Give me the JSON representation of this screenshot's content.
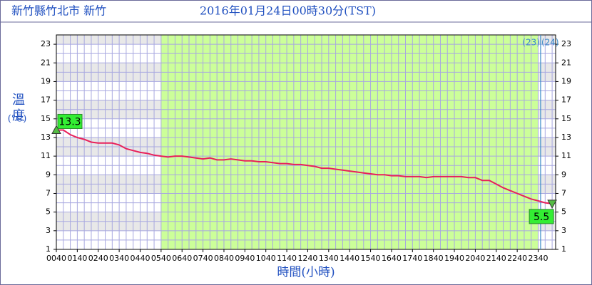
{
  "chart_data": {
    "type": "line",
    "station": "新竹縣竹北市 新竹",
    "title": "2016年01月24日00時30分(TST)",
    "ylabel": "溫度",
    "yunit": "(°C)",
    "xlabel": "時間(小時)",
    "x": [
      40,
      60,
      80,
      100,
      120,
      140,
      160,
      180,
      200,
      220,
      240,
      260,
      280,
      300,
      320,
      340,
      360,
      380,
      400,
      420,
      440,
      460,
      480,
      500,
      520,
      540,
      560,
      580,
      600,
      620,
      640,
      660,
      680,
      700,
      720,
      740,
      760,
      780,
      800,
      820,
      840,
      860,
      880,
      900,
      920,
      940,
      960,
      980,
      1000,
      1020,
      1040,
      1060,
      1080,
      1100,
      1120,
      1140,
      1160,
      1180,
      1200,
      1220,
      1240,
      1260,
      1280,
      1300,
      1320,
      1340,
      1360,
      1380,
      1400,
      1420,
      1440,
      1460
    ],
    "series": [
      {
        "color": "#e8205a",
        "values": [
          13.8,
          13.8,
          13.3,
          13.0,
          12.8,
          12.5,
          12.4,
          12.4,
          12.4,
          12.2,
          11.8,
          11.6,
          11.4,
          11.3,
          11.1,
          11.0,
          10.9,
          11.0,
          11.0,
          10.9,
          10.8,
          10.7,
          10.8,
          10.6,
          10.6,
          10.7,
          10.6,
          10.5,
          10.5,
          10.4,
          10.4,
          10.3,
          10.2,
          10.2,
          10.1,
          10.1,
          10.0,
          9.9,
          9.7,
          9.7,
          9.6,
          9.5,
          9.4,
          9.3,
          9.2,
          9.1,
          9.0,
          9.0,
          8.9,
          8.9,
          8.8,
          8.8,
          8.8,
          8.7,
          8.8,
          8.8,
          8.8,
          8.8,
          8.8,
          8.7,
          8.7,
          8.4,
          8.4,
          8.0,
          7.6,
          7.3,
          7.0,
          6.7,
          6.4,
          6.2,
          6.0,
          5.9
        ]
      }
    ],
    "max_label": 13.3,
    "min_label": 5.5,
    "xlim": [
      40,
      1470
    ],
    "ylim": [
      1,
      24
    ],
    "xticks": [
      {
        "value": 40,
        "label": "0040"
      },
      {
        "value": 100,
        "label": "0140"
      },
      {
        "value": 160,
        "label": "0240"
      },
      {
        "value": 220,
        "label": "0340"
      },
      {
        "value": 280,
        "label": "0440"
      },
      {
        "value": 340,
        "label": "0540"
      },
      {
        "value": 400,
        "label": "0640"
      },
      {
        "value": 460,
        "label": "0740"
      },
      {
        "value": 520,
        "label": "0840"
      },
      {
        "value": 580,
        "label": "0940"
      },
      {
        "value": 640,
        "label": "1040"
      },
      {
        "value": 700,
        "label": "1140"
      },
      {
        "value": 760,
        "label": "1240"
      },
      {
        "value": 820,
        "label": "1340"
      },
      {
        "value": 880,
        "label": "1440"
      },
      {
        "value": 940,
        "label": "1540"
      },
      {
        "value": 1000,
        "label": "1640"
      },
      {
        "value": 1060,
        "label": "1740"
      },
      {
        "value": 1120,
        "label": "1840"
      },
      {
        "value": 1180,
        "label": "1940"
      },
      {
        "value": 1240,
        "label": "2040"
      },
      {
        "value": 1300,
        "label": "2140"
      },
      {
        "value": 1360,
        "label": "2240"
      },
      {
        "value": 1420,
        "label": "2340"
      }
    ],
    "yticks": [
      1,
      3,
      5,
      7,
      9,
      11,
      13,
      15,
      17,
      19,
      21,
      23
    ],
    "x_minor_step": 20,
    "y_minor_step": 1,
    "shaded_range": [
      340,
      1420
    ],
    "shaded_color": "#ccff99",
    "day_marker": {
      "value": 1427,
      "left": "(23)",
      "right": "(24)"
    },
    "grid": true
  }
}
